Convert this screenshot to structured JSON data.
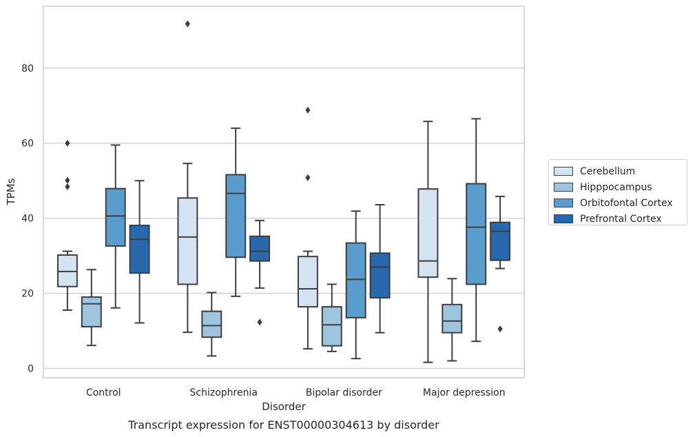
{
  "chart_data": {
    "type": "box",
    "title": "Transcript expression for ENST00000304613 by disorder",
    "xlabel": "Disorder",
    "ylabel": "TPMs",
    "ylim": [
      -2.5,
      96.5
    ],
    "yticks": [
      0,
      20,
      40,
      60,
      80
    ],
    "grid": "horizontal",
    "legend_placement": "right-center",
    "categories": [
      "Control",
      "Schizophrenia",
      "Bipolar disorder",
      "Major depression"
    ],
    "series": [
      {
        "name": "Cerebellum",
        "color": "#d4e3f2",
        "boxes": [
          {
            "whislo": 15.5,
            "q1": 21.8,
            "med": 25.8,
            "q3": 30.2,
            "whishi": 31.2,
            "fliers": [
              48.4,
              50.1,
              60.0
            ]
          },
          {
            "whislo": 9.6,
            "q1": 22.4,
            "med": 35.0,
            "q3": 45.4,
            "whishi": 54.6,
            "fliers": [
              91.8
            ]
          },
          {
            "whislo": 5.2,
            "q1": 16.4,
            "med": 21.2,
            "q3": 29.8,
            "whishi": 31.2,
            "fliers": [
              50.8,
              68.8
            ]
          },
          {
            "whislo": 1.6,
            "q1": 24.3,
            "med": 28.6,
            "q3": 47.8,
            "whishi": 65.8,
            "fliers": []
          }
        ]
      },
      {
        "name": "Hipppocampus",
        "color": "#9ec4de",
        "boxes": [
          {
            "whislo": 6.1,
            "q1": 11.1,
            "med": 17.2,
            "q3": 19.0,
            "whishi": 26.3,
            "fliers": []
          },
          {
            "whislo": 3.3,
            "q1": 8.3,
            "med": 11.4,
            "q3": 15.2,
            "whishi": 20.2,
            "fliers": []
          },
          {
            "whislo": 4.5,
            "q1": 6.0,
            "med": 11.6,
            "q3": 16.4,
            "whishi": 22.4,
            "fliers": []
          },
          {
            "whislo": 2.0,
            "q1": 9.5,
            "med": 12.6,
            "q3": 17.0,
            "whishi": 23.9,
            "fliers": []
          }
        ]
      },
      {
        "name": "Orbitofontal Cortex",
        "color": "#5a9ccb",
        "boxes": [
          {
            "whislo": 16.1,
            "q1": 32.6,
            "med": 40.6,
            "q3": 47.9,
            "whishi": 59.5,
            "fliers": []
          },
          {
            "whislo": 19.2,
            "q1": 29.6,
            "med": 46.6,
            "q3": 51.6,
            "whishi": 64.0,
            "fliers": []
          },
          {
            "whislo": 2.6,
            "q1": 13.5,
            "med": 23.7,
            "q3": 33.4,
            "whishi": 41.9,
            "fliers": []
          },
          {
            "whislo": 7.2,
            "q1": 22.4,
            "med": 37.6,
            "q3": 49.2,
            "whishi": 66.5,
            "fliers": []
          }
        ]
      },
      {
        "name": "Prefrontal Cortex",
        "color": "#2868ac",
        "boxes": [
          {
            "whislo": 12.1,
            "q1": 25.4,
            "med": 34.4,
            "q3": 38.1,
            "whishi": 50.0,
            "fliers": []
          },
          {
            "whislo": 21.4,
            "q1": 28.6,
            "med": 31.2,
            "q3": 35.2,
            "whishi": 39.4,
            "fliers": [
              12.3
            ]
          },
          {
            "whislo": 9.5,
            "q1": 18.8,
            "med": 27.0,
            "q3": 30.7,
            "whishi": 43.6,
            "fliers": []
          },
          {
            "whislo": 26.6,
            "q1": 28.8,
            "med": 36.5,
            "q3": 38.9,
            "whishi": 45.8,
            "fliers": [
              10.5
            ]
          }
        ]
      }
    ]
  }
}
